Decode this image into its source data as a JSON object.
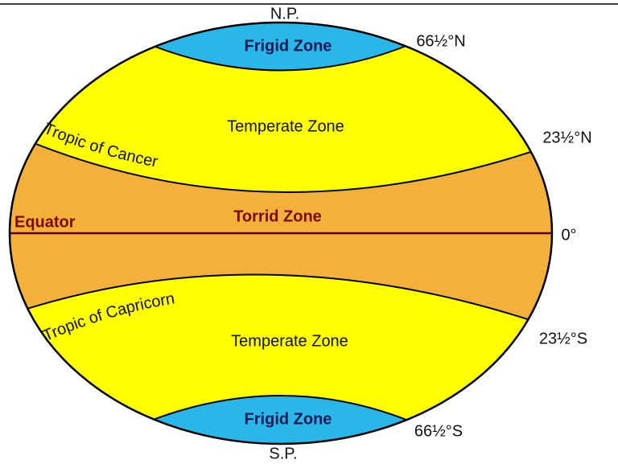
{
  "labels": {
    "north_pole": "N.P.",
    "south_pole": "S.P.",
    "frigid_north": "Frigid Zone",
    "frigid_south": "Frigid Zone",
    "temperate_north": "Temperate Zone",
    "temperate_south": "Temperate Zone",
    "torrid": "Torrid Zone",
    "equator": "Equator",
    "tropic_cancer": "Tropic of Cancer",
    "tropic_capricorn": "Tropic of Capricorn",
    "lat_66n": "66½°N",
    "lat_23n": "23½°N",
    "lat_0": "0°",
    "lat_23s": "23½°S",
    "lat_66s": "66½°S"
  }
}
